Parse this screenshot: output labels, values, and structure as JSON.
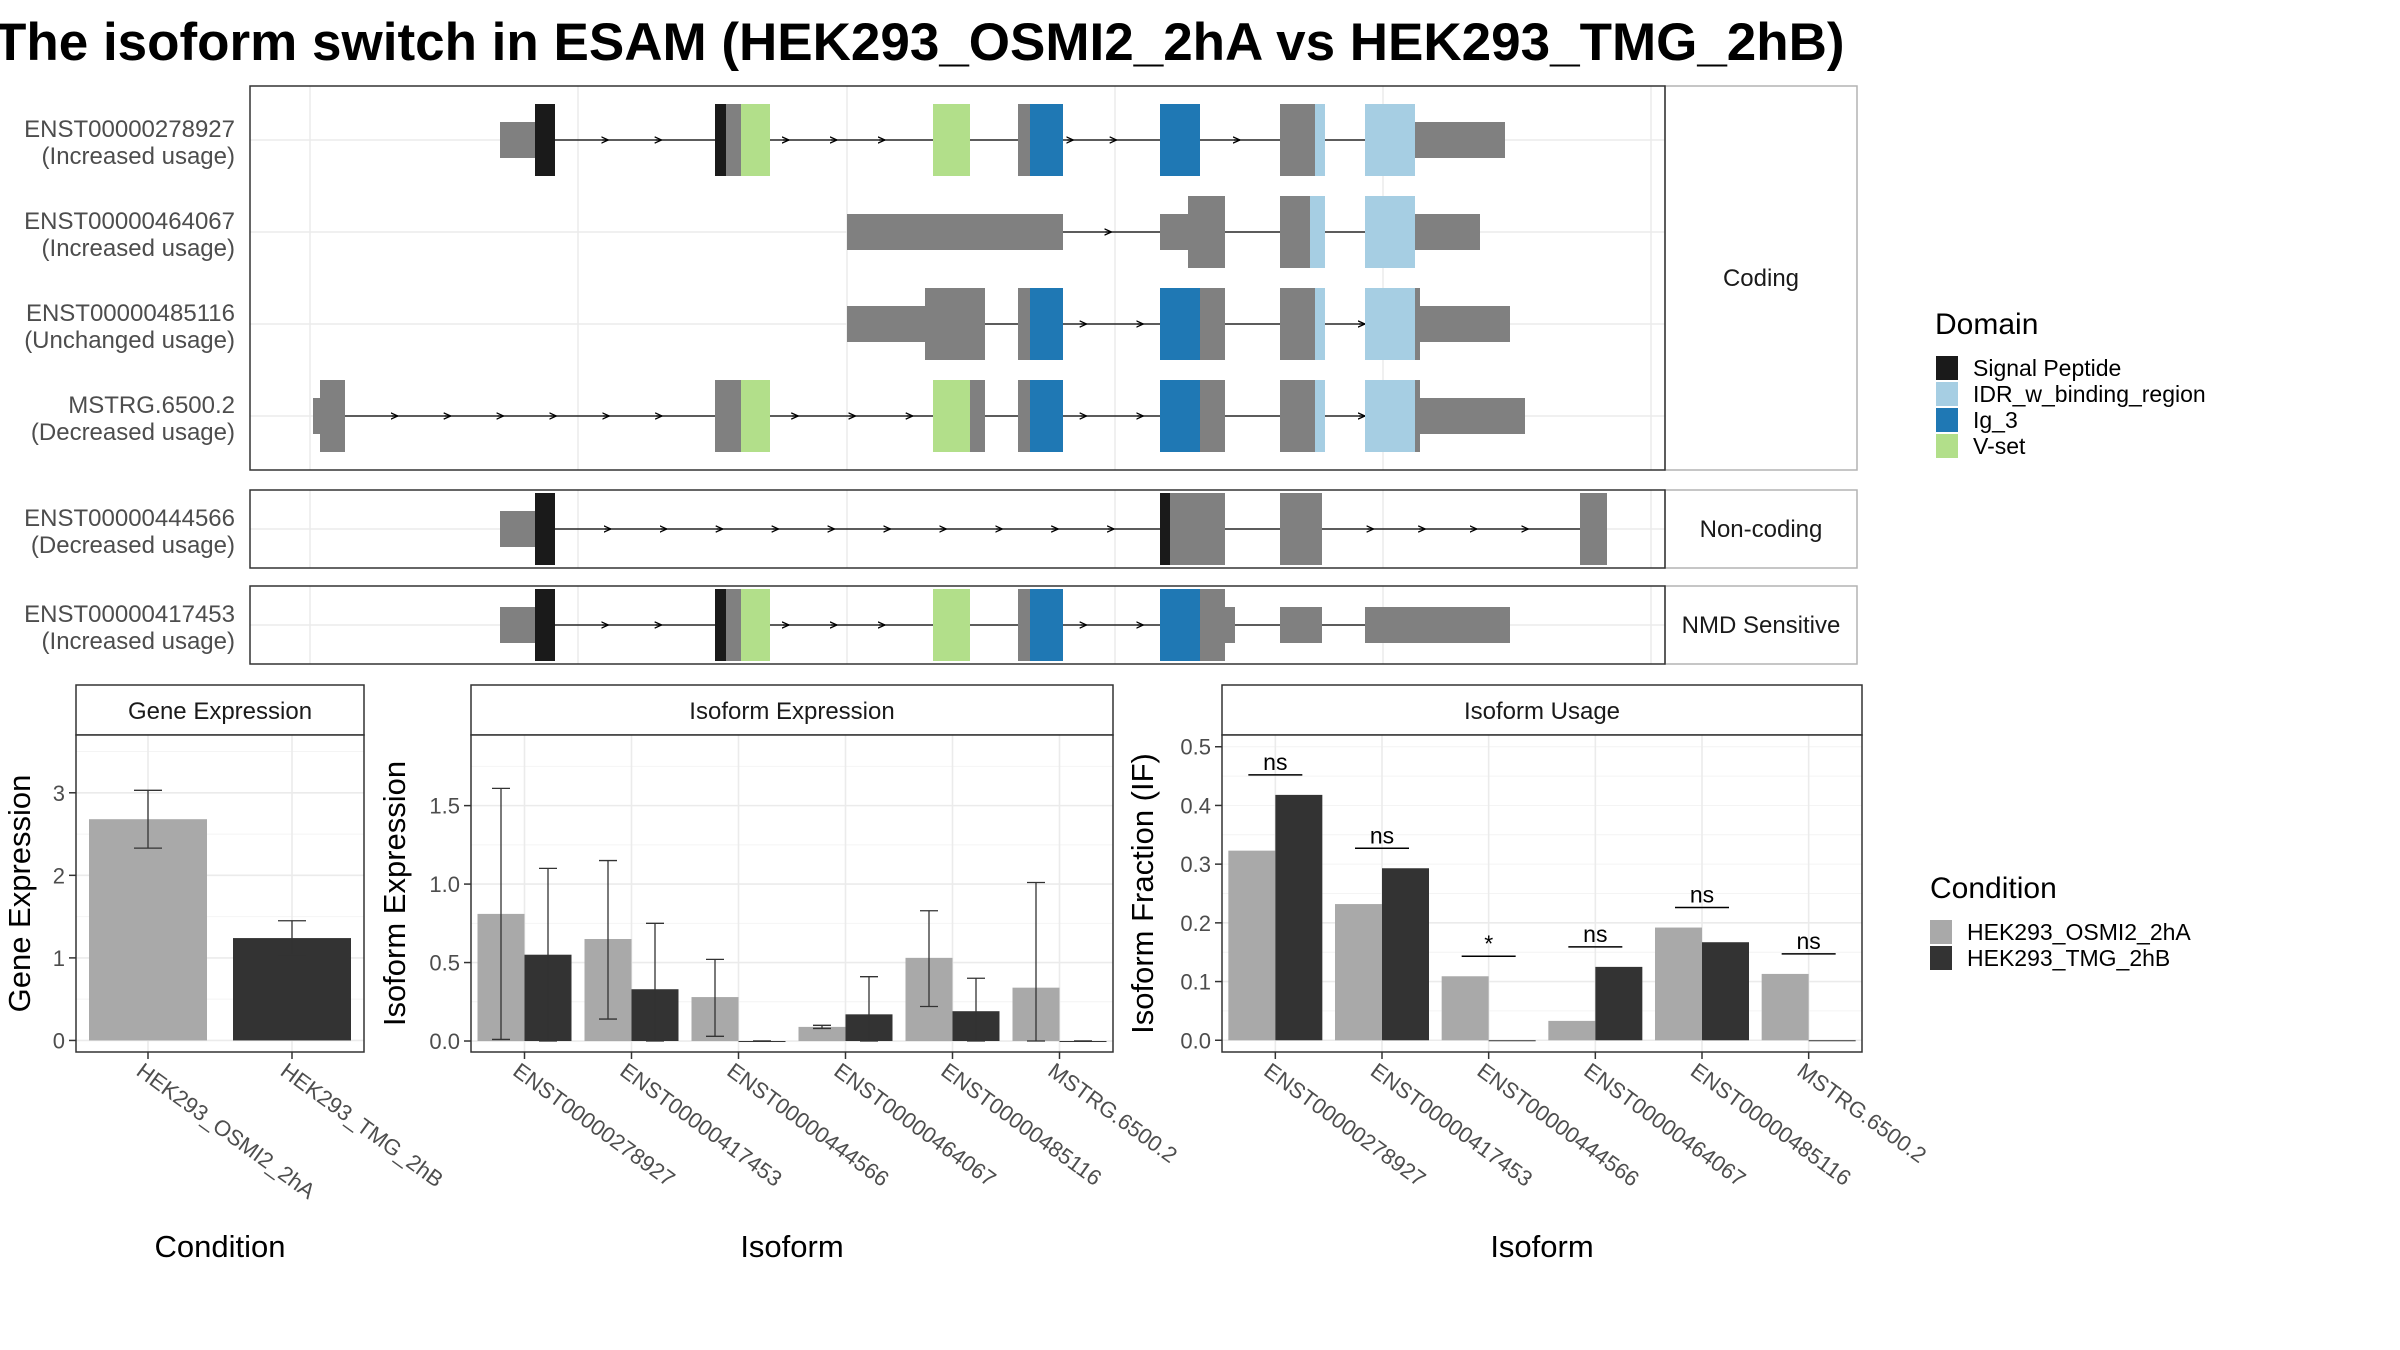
{
  "title": "The isoform switch in ESAM (HEK293_OSMI2_2hA vs HEK293_TMG_2hB)",
  "colors": {
    "exon": "#808080",
    "Signal Peptide": "#1a1a1a",
    "IDR_w_binding_region": "#a6cee3",
    "Ig_3": "#1f78b4",
    "V-set": "#b2df8a",
    "HEK293_OSMI2_2hA": "#a9a9a9",
    "HEK293_TMG_2hB": "#333333"
  },
  "domain_legend": {
    "title": "Domain",
    "items": [
      "Signal Peptide",
      "IDR_w_binding_region",
      "Ig_3",
      "V-set"
    ]
  },
  "condition_legend": {
    "title": "Condition",
    "items": [
      "HEK293_OSMI2_2hA",
      "HEK293_TMG_2hB"
    ]
  },
  "facets": [
    "Coding",
    "Non-coding",
    "NMD Sensitive"
  ],
  "transcripts": [
    {
      "id": "ENST00000278927",
      "usage": "(Increased usage)",
      "facet": 0,
      "exons": [
        {
          "s": 500,
          "e": 535,
          "t": "n"
        },
        {
          "s": 535,
          "e": 555,
          "t": "c"
        },
        {
          "s": 715,
          "e": 741,
          "t": "c"
        },
        {
          "s": 933,
          "e": 970,
          "t": "c"
        },
        {
          "s": 1018,
          "e": 1030,
          "t": "c"
        },
        {
          "s": 1160,
          "e": 1200,
          "t": "c"
        },
        {
          "s": 1280,
          "e": 1315,
          "t": "c"
        },
        {
          "s": 1365,
          "e": 1415,
          "t": "c"
        },
        {
          "s": 1415,
          "e": 1505,
          "t": "n"
        }
      ],
      "domains": [
        {
          "s": 535,
          "e": 555,
          "d": "Signal Peptide"
        },
        {
          "s": 715,
          "e": 726,
          "d": "Signal Peptide"
        },
        {
          "s": 741,
          "e": 770,
          "d": "V-set"
        },
        {
          "s": 933,
          "e": 970,
          "d": "V-set"
        },
        {
          "s": 1030,
          "e": 1063,
          "d": "Ig_3"
        },
        {
          "s": 1160,
          "e": 1200,
          "d": "Ig_3"
        },
        {
          "s": 1315,
          "e": 1325,
          "d": "IDR_w_binding_region"
        },
        {
          "s": 1365,
          "e": 1415,
          "d": "IDR_w_binding_region"
        }
      ]
    },
    {
      "id": "ENST00000464067",
      "usage": "(Increased usage)",
      "facet": 0,
      "exons": [
        {
          "s": 847,
          "e": 1063,
          "t": "n"
        },
        {
          "s": 1160,
          "e": 1188,
          "t": "n"
        },
        {
          "s": 1188,
          "e": 1225,
          "t": "c"
        },
        {
          "s": 1280,
          "e": 1310,
          "t": "c"
        },
        {
          "s": 1365,
          "e": 1415,
          "t": "c"
        },
        {
          "s": 1415,
          "e": 1480,
          "t": "n"
        }
      ],
      "domains": [
        {
          "s": 1310,
          "e": 1325,
          "d": "IDR_w_binding_region"
        },
        {
          "s": 1365,
          "e": 1415,
          "d": "IDR_w_binding_region"
        }
      ]
    },
    {
      "id": "ENST00000485116",
      "usage": "(Unchanged usage)",
      "facet": 0,
      "exons": [
        {
          "s": 847,
          "e": 925,
          "t": "n"
        },
        {
          "s": 925,
          "e": 985,
          "t": "c"
        },
        {
          "s": 1018,
          "e": 1030,
          "t": "c"
        },
        {
          "s": 1200,
          "e": 1225,
          "t": "c"
        },
        {
          "s": 1280,
          "e": 1315,
          "t": "c"
        },
        {
          "s": 1415,
          "e": 1420,
          "t": "c"
        },
        {
          "s": 1420,
          "e": 1510,
          "t": "n"
        }
      ],
      "domains": [
        {
          "s": 1030,
          "e": 1063,
          "d": "Ig_3"
        },
        {
          "s": 1160,
          "e": 1200,
          "d": "Ig_3"
        },
        {
          "s": 1315,
          "e": 1325,
          "d": "IDR_w_binding_region"
        },
        {
          "s": 1365,
          "e": 1415,
          "d": "IDR_w_binding_region"
        }
      ]
    },
    {
      "id": "MSTRG.6500.2",
      "usage": "(Decreased usage)",
      "facet": 0,
      "exons": [
        {
          "s": 313,
          "e": 320,
          "t": "n"
        },
        {
          "s": 320,
          "e": 345,
          "t": "c"
        },
        {
          "s": 715,
          "e": 741,
          "t": "c"
        },
        {
          "s": 970,
          "e": 985,
          "t": "c"
        },
        {
          "s": 1018,
          "e": 1030,
          "t": "c"
        },
        {
          "s": 1200,
          "e": 1225,
          "t": "c"
        },
        {
          "s": 1280,
          "e": 1315,
          "t": "c"
        },
        {
          "s": 1415,
          "e": 1420,
          "t": "c"
        },
        {
          "s": 1420,
          "e": 1525,
          "t": "n"
        }
      ],
      "domains": [
        {
          "s": 741,
          "e": 770,
          "d": "V-set"
        },
        {
          "s": 933,
          "e": 970,
          "d": "V-set"
        },
        {
          "s": 1030,
          "e": 1063,
          "d": "Ig_3"
        },
        {
          "s": 1160,
          "e": 1200,
          "d": "Ig_3"
        },
        {
          "s": 1315,
          "e": 1325,
          "d": "IDR_w_binding_region"
        },
        {
          "s": 1365,
          "e": 1415,
          "d": "IDR_w_binding_region"
        }
      ]
    },
    {
      "id": "ENST00000444566",
      "usage": "(Decreased usage)",
      "facet": 1,
      "exons": [
        {
          "s": 500,
          "e": 535,
          "t": "n"
        },
        {
          "s": 535,
          "e": 555,
          "t": "c"
        },
        {
          "s": 1170,
          "e": 1225,
          "t": "c"
        },
        {
          "s": 1280,
          "e": 1322,
          "t": "c"
        },
        {
          "s": 1580,
          "e": 1607,
          "t": "c"
        }
      ],
      "domains": [
        {
          "s": 535,
          "e": 555,
          "d": "Signal Peptide"
        },
        {
          "s": 1160,
          "e": 1170,
          "d": "Signal Peptide"
        }
      ]
    },
    {
      "id": "ENST00000417453",
      "usage": "(Increased usage)",
      "facet": 2,
      "exons": [
        {
          "s": 500,
          "e": 535,
          "t": "n"
        },
        {
          "s": 535,
          "e": 555,
          "t": "c"
        },
        {
          "s": 715,
          "e": 741,
          "t": "c"
        },
        {
          "s": 933,
          "e": 970,
          "t": "c"
        },
        {
          "s": 1018,
          "e": 1030,
          "t": "c"
        },
        {
          "s": 1200,
          "e": 1225,
          "t": "c"
        },
        {
          "s": 1225,
          "e": 1235,
          "t": "n"
        },
        {
          "s": 1280,
          "e": 1322,
          "t": "n"
        },
        {
          "s": 1365,
          "e": 1510,
          "t": "n"
        }
      ],
      "domains": [
        {
          "s": 535,
          "e": 555,
          "d": "Signal Peptide"
        },
        {
          "s": 715,
          "e": 726,
          "d": "Signal Peptide"
        },
        {
          "s": 741,
          "e": 770,
          "d": "V-set"
        },
        {
          "s": 933,
          "e": 970,
          "d": "V-set"
        },
        {
          "s": 1030,
          "e": 1063,
          "d": "Ig_3"
        },
        {
          "s": 1160,
          "e": 1200,
          "d": "Ig_3"
        }
      ]
    }
  ],
  "chart_data": [
    {
      "type": "bar",
      "strip": "Gene Expression",
      "xlabel": "Condition",
      "ylabel": "Gene Expression",
      "categories": [
        "HEK293_OSMI2_2hA",
        "HEK293_TMG_2hB"
      ],
      "values": [
        2.68,
        1.24
      ],
      "err_low": [
        2.33,
        1.04
      ],
      "err_high": [
        3.03,
        1.45
      ],
      "ylim": [
        -0.14,
        3.7
      ],
      "yticks": [
        0,
        1,
        2,
        3
      ]
    },
    {
      "type": "bar",
      "strip": "Isoform Expression",
      "xlabel": "Isoform",
      "ylabel": "Isoform Expression",
      "categories": [
        "ENST00000278927",
        "ENST00000417453",
        "ENST00000444566",
        "ENST00000464067",
        "ENST00000485116",
        "MSTRG.6500.2"
      ],
      "series": [
        {
          "name": "HEK293_OSMI2_2hA",
          "values": [
            0.81,
            0.65,
            0.28,
            0.09,
            0.53,
            0.34
          ],
          "err_low": [
            0.01,
            0.14,
            0.03,
            0.08,
            0.22,
            0.0
          ],
          "err_high": [
            1.61,
            1.15,
            0.52,
            0.1,
            0.83,
            1.01
          ]
        },
        {
          "name": "HEK293_TMG_2hB",
          "values": [
            0.55,
            0.33,
            0.0,
            0.17,
            0.19,
            0.0
          ],
          "err_low": [
            0.0,
            0.0,
            0.0,
            0.0,
            0.0,
            0.0
          ],
          "err_high": [
            1.1,
            0.75,
            0.0,
            0.41,
            0.4,
            0.0
          ]
        }
      ],
      "ylim": [
        -0.07,
        1.95
      ],
      "yticks": [
        0.0,
        0.5,
        1.0,
        1.5
      ]
    },
    {
      "type": "bar",
      "strip": "Isoform Usage",
      "xlabel": "Isoform",
      "ylabel": "Isoform Fraction (IF)",
      "categories": [
        "ENST00000278927",
        "ENST00000417453",
        "ENST00000444566",
        "ENST00000464067",
        "ENST00000485116",
        "MSTRG.6500.2"
      ],
      "series": [
        {
          "name": "HEK293_OSMI2_2hA",
          "values": [
            0.323,
            0.232,
            0.109,
            0.033,
            0.192,
            0.113
          ]
        },
        {
          "name": "HEK293_TMG_2hB",
          "values": [
            0.418,
            0.293,
            0.0,
            0.125,
            0.167,
            0.0
          ]
        }
      ],
      "significance": [
        "ns",
        "ns",
        "*",
        "ns",
        "ns",
        "ns"
      ],
      "ylim": [
        -0.02,
        0.52
      ],
      "yticks": [
        0.0,
        0.1,
        0.2,
        0.3,
        0.4,
        0.5
      ]
    }
  ]
}
